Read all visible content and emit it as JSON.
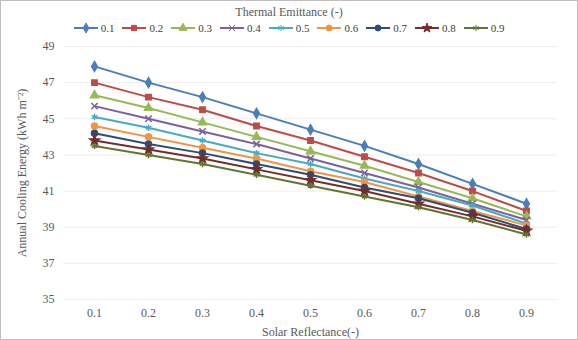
{
  "chart_data": {
    "type": "line",
    "xlabel": "Solar Reflectance(-)",
    "ylabel": "Annual Cooling Energy (kWh m⁻²)",
    "legend_title": "Thermal Emittance (-)",
    "legend": "top",
    "grid": true,
    "categories": [
      "0.1",
      "0.2",
      "0.3",
      "0.4",
      "0.5",
      "0.6",
      "0.7",
      "0.8",
      "0.9"
    ],
    "ylim": [
      35,
      49
    ],
    "yticks": [
      35,
      37,
      39,
      41,
      43,
      45,
      47,
      49
    ],
    "series": [
      {
        "name": "0.1",
        "color": "#4a7ebb",
        "marker": "diamond",
        "values": [
          47.9,
          47.0,
          46.2,
          45.3,
          44.4,
          43.5,
          42.5,
          41.4,
          40.3
        ]
      },
      {
        "name": "0.2",
        "color": "#be4b48",
        "marker": "square",
        "values": [
          47.0,
          46.2,
          45.5,
          44.6,
          43.8,
          42.9,
          42.0,
          41.0,
          39.9
        ]
      },
      {
        "name": "0.3",
        "color": "#98b954",
        "marker": "triangle",
        "values": [
          46.3,
          45.6,
          44.8,
          44.0,
          43.2,
          42.4,
          41.5,
          40.6,
          39.6
        ]
      },
      {
        "name": "0.4",
        "color": "#7d60a0",
        "marker": "times",
        "values": [
          45.7,
          45.0,
          44.3,
          43.6,
          42.8,
          42.0,
          41.2,
          40.3,
          39.4
        ]
      },
      {
        "name": "0.5",
        "color": "#46aac5",
        "marker": "asterisk",
        "values": [
          45.1,
          44.5,
          43.8,
          43.1,
          42.5,
          41.7,
          41.0,
          40.2,
          39.2
        ]
      },
      {
        "name": "0.6",
        "color": "#f69240",
        "marker": "circle",
        "values": [
          44.6,
          44.0,
          43.4,
          42.8,
          42.1,
          41.5,
          40.7,
          39.9,
          39.1
        ]
      },
      {
        "name": "0.7",
        "color": "#2c4d75",
        "marker": "circle",
        "values": [
          44.2,
          43.6,
          43.1,
          42.5,
          41.9,
          41.2,
          40.6,
          39.8,
          38.9
        ]
      },
      {
        "name": "0.8",
        "color": "#772c2a",
        "marker": "star",
        "values": [
          43.8,
          43.3,
          42.8,
          42.2,
          41.6,
          41.0,
          40.3,
          39.6,
          38.8
        ]
      },
      {
        "name": "0.9",
        "color": "#5f7530",
        "marker": "asterisk",
        "values": [
          43.5,
          43.0,
          42.5,
          41.9,
          41.3,
          40.7,
          40.1,
          39.4,
          38.6
        ]
      }
    ]
  }
}
